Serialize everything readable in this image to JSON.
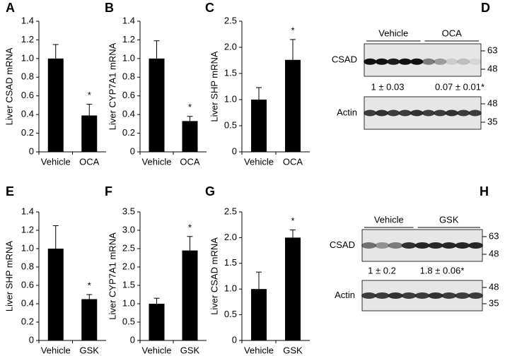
{
  "chart_data": [
    {
      "type": "bar",
      "panel": "A",
      "ylabel": "Liver CSAD mRNA",
      "categories": [
        "Vehicle",
        "OCA"
      ],
      "values": [
        1.0,
        0.39
      ],
      "errors": [
        0.15,
        0.12
      ],
      "color": "#000000",
      "ylim": [
        0,
        1.4
      ],
      "yticks": [
        0,
        0.2,
        0.4,
        0.6,
        0.8,
        {
          "value": 1,
          "label": "1.0"
        },
        1.2,
        1.4
      ],
      "annotations": [
        {
          "text": "*",
          "category": "OCA"
        }
      ]
    },
    {
      "type": "bar",
      "panel": "B",
      "ylabel": "Liver CYP7A1 mRNA",
      "categories": [
        "Vehicle",
        "OCA"
      ],
      "values": [
        1.0,
        0.33
      ],
      "errors": [
        0.19,
        0.05
      ],
      "color": "#000000",
      "ylim": [
        0,
        1.4
      ],
      "yticks": [
        0,
        0.2,
        0.4,
        0.6,
        0.8,
        {
          "value": 1,
          "label": "1.0"
        },
        1.2,
        1.4
      ],
      "annotations": [
        {
          "text": "*",
          "category": "OCA"
        }
      ]
    },
    {
      "type": "bar",
      "panel": "C",
      "ylabel": "Liver SHP mRNA",
      "categories": [
        "Vehicle",
        "OCA"
      ],
      "values": [
        1.0,
        1.76
      ],
      "errors": [
        0.23,
        0.39
      ],
      "color": "#000000",
      "ylim": [
        0,
        2.5
      ],
      "yticks": [
        0,
        0.5,
        {
          "value": 1,
          "label": "1.0"
        },
        1.5,
        {
          "value": 2,
          "label": "2.0"
        },
        2.5
      ],
      "annotations": [
        {
          "text": "*",
          "category": "OCA"
        }
      ]
    },
    {
      "type": "bar",
      "panel": "E",
      "ylabel": "Liver SHP mRNA",
      "categories": [
        "Vehicle",
        "GSK"
      ],
      "values": [
        1.0,
        0.45
      ],
      "errors": [
        0.25,
        0.05
      ],
      "color": "#000000",
      "ylim": [
        0,
        1.4
      ],
      "yticks": [
        0,
        0.2,
        0.4,
        0.6,
        0.8,
        {
          "value": 1,
          "label": "1.0"
        },
        1.2,
        1.4
      ],
      "annotations": [
        {
          "text": "*",
          "category": "GSK"
        }
      ]
    },
    {
      "type": "bar",
      "panel": "F",
      "ylabel": "Liver CYP7A1 mRNA",
      "categories": [
        "Vehicle",
        "GSK"
      ],
      "values": [
        1.0,
        2.45
      ],
      "errors": [
        0.15,
        0.38
      ],
      "color": "#000000",
      "ylim": [
        0,
        3.5
      ],
      "yticks": [
        0,
        0.5,
        {
          "value": 1,
          "label": "1.0"
        },
        1.5,
        {
          "value": 2,
          "label": "2.0"
        },
        2.5,
        {
          "value": 3,
          "label": "3.0"
        },
        3.5
      ],
      "annotations": [
        {
          "text": "*",
          "category": "GSK"
        }
      ]
    },
    {
      "type": "bar",
      "panel": "G",
      "ylabel": "Liver CSAD mRNA",
      "categories": [
        "Vehicle",
        "GSK"
      ],
      "values": [
        1.0,
        2.0
      ],
      "errors": [
        0.33,
        0.15
      ],
      "color": "#000000",
      "ylim": [
        0,
        2.5
      ],
      "yticks": [
        0,
        0.5,
        {
          "value": 1,
          "label": "1.0"
        },
        1.5,
        {
          "value": 2,
          "label": "2.0"
        },
        2.5
      ],
      "annotations": [
        {
          "text": "*",
          "category": "GSK"
        }
      ]
    }
  ],
  "blots": [
    {
      "panel": "D",
      "groups": [
        "Vehicle",
        "OCA"
      ],
      "rows": [
        {
          "label": "CSAD",
          "markers": [
            63,
            48
          ]
        },
        {
          "label": "Actin",
          "markers": [
            48,
            35
          ]
        }
      ],
      "quantification": [
        "1 ± 0.03",
        "0.07 ± 0.01*"
      ]
    },
    {
      "panel": "H",
      "groups": [
        "Vehicle",
        "GSK"
      ],
      "rows": [
        {
          "label": "CSAD",
          "markers": [
            63,
            48
          ]
        },
        {
          "label": "Actin",
          "markers": [
            48,
            35
          ]
        }
      ],
      "quantification": [
        "1 ± 0.2",
        "1.8 ± 0.06*"
      ]
    }
  ]
}
